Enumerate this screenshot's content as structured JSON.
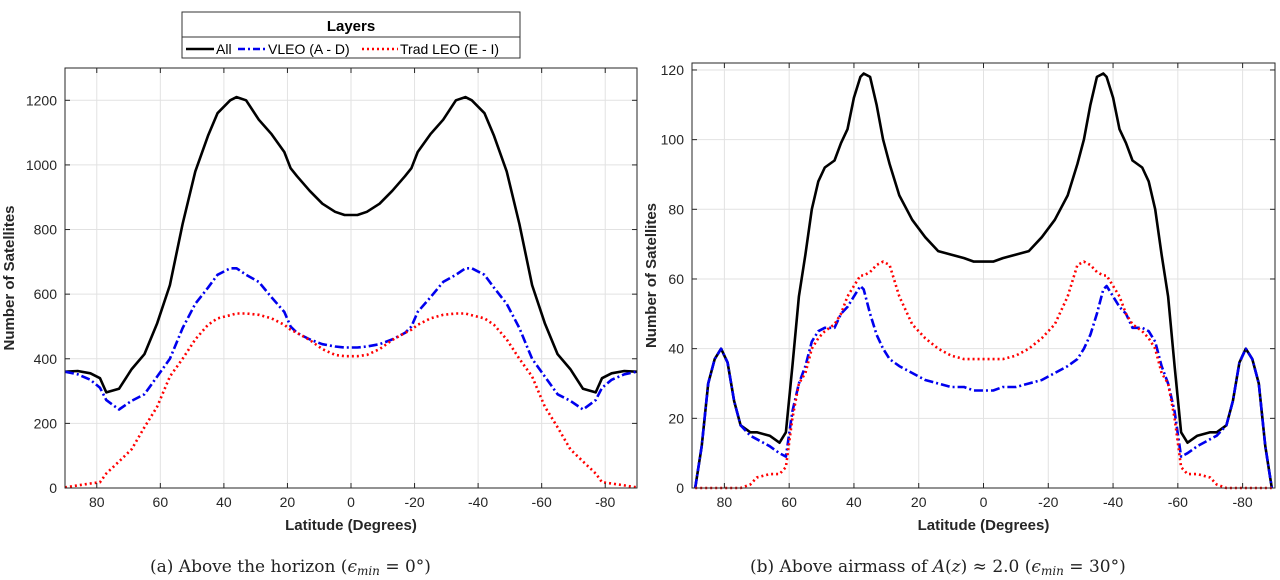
{
  "legend": {
    "title": "Layers",
    "entries": [
      {
        "name": "All",
        "color": "#000000",
        "style": "solid"
      },
      {
        "name": "VLEO (A - D)",
        "color": "#0000ee",
        "style": "dashdot"
      },
      {
        "name": "Trad LEO (E - I)",
        "color": "#ff0000",
        "style": "dotted"
      }
    ]
  },
  "chart_data": [
    {
      "type": "line",
      "caption": "(a) Above the horizon (ϵmin = 0°)",
      "xlabel": "Latitude (Degrees)",
      "ylabel": "Number of Satellites",
      "xlim": [
        90,
        -90
      ],
      "ylim": [
        0,
        1300
      ],
      "xticks": [
        80,
        60,
        40,
        20,
        0,
        -20,
        -40,
        -60,
        -80
      ],
      "yticks": [
        0,
        200,
        400,
        600,
        800,
        1000,
        1200
      ],
      "grid": true,
      "series": [
        {
          "name": "All",
          "color": "#000000",
          "style": "solid",
          "x": [
            90,
            86,
            82,
            79,
            77,
            73,
            69,
            65,
            61,
            57,
            53,
            49,
            45,
            42,
            38,
            36,
            33,
            29,
            25,
            21,
            19,
            17,
            13,
            9,
            5,
            2,
            0,
            -2,
            -5,
            -9,
            -13,
            -17,
            -19,
            -21,
            -25,
            -29,
            -33,
            -36,
            -38,
            -42,
            -45,
            -49,
            -53,
            -57,
            -61,
            -65,
            -69,
            -73,
            -77,
            -79,
            -82,
            -86,
            -90
          ],
          "y": [
            360,
            362,
            355,
            340,
            296,
            307,
            368,
            414,
            510,
            628,
            817,
            980,
            1090,
            1160,
            1200,
            1210,
            1200,
            1140,
            1095,
            1040,
            990,
            965,
            920,
            880,
            855,
            845,
            845,
            845,
            855,
            880,
            920,
            965,
            990,
            1040,
            1095,
            1140,
            1200,
            1210,
            1200,
            1160,
            1090,
            980,
            817,
            628,
            510,
            414,
            368,
            307,
            296,
            340,
            355,
            362,
            360
          ]
        },
        {
          "name": "VLEO (A - D)",
          "color": "#0000ee",
          "style": "dashdot",
          "x": [
            90,
            86,
            82,
            79,
            77,
            73,
            69,
            65,
            61,
            57,
            53,
            49,
            45,
            42,
            38,
            36,
            33,
            29,
            25,
            21,
            19,
            17,
            13,
            9,
            5,
            2,
            0,
            -2,
            -5,
            -9,
            -13,
            -17,
            -19,
            -21,
            -25,
            -29,
            -33,
            -36,
            -38,
            -42,
            -45,
            -49,
            -53,
            -57,
            -61,
            -65,
            -69,
            -73,
            -77,
            -79,
            -82,
            -86,
            -90
          ],
          "y": [
            360,
            352,
            335,
            310,
            272,
            243,
            270,
            290,
            345,
            400,
            495,
            570,
            620,
            660,
            680,
            680,
            660,
            638,
            590,
            545,
            500,
            480,
            460,
            445,
            438,
            435,
            435,
            435,
            438,
            445,
            460,
            480,
            500,
            545,
            590,
            638,
            660,
            680,
            680,
            660,
            620,
            570,
            495,
            400,
            345,
            290,
            270,
            243,
            272,
            310,
            335,
            352,
            360
          ]
        },
        {
          "name": "Trad LEO (E - I)",
          "color": "#ff0000",
          "style": "dotted",
          "x": [
            90,
            86,
            82,
            79,
            77,
            73,
            69,
            65,
            61,
            57,
            53,
            49,
            45,
            42,
            38,
            36,
            33,
            29,
            25,
            21,
            19,
            17,
            13,
            9,
            5,
            2,
            0,
            -2,
            -5,
            -9,
            -13,
            -17,
            -19,
            -21,
            -25,
            -29,
            -33,
            -36,
            -38,
            -42,
            -45,
            -49,
            -53,
            -57,
            -61,
            -65,
            -69,
            -73,
            -77,
            -79,
            -82,
            -86,
            -90
          ],
          "y": [
            2,
            8,
            14,
            18,
            45,
            82,
            120,
            188,
            252,
            345,
            400,
            460,
            505,
            525,
            535,
            540,
            540,
            536,
            525,
            505,
            490,
            480,
            458,
            430,
            412,
            408,
            408,
            408,
            412,
            430,
            458,
            480,
            490,
            505,
            525,
            536,
            540,
            540,
            535,
            525,
            505,
            460,
            400,
            345,
            252,
            188,
            120,
            82,
            45,
            18,
            14,
            8,
            2
          ]
        }
      ]
    },
    {
      "type": "line",
      "caption": "(b) Above airmass of A(z) ≈ 2.0 (ϵmin = 30°)",
      "xlabel": "Latitude (Degrees)",
      "ylabel": "Number of Satellites",
      "xlim": [
        90,
        -90
      ],
      "ylim": [
        0,
        122
      ],
      "xticks": [
        80,
        60,
        40,
        20,
        0,
        -20,
        -40,
        -60,
        -80
      ],
      "yticks": [
        0,
        20,
        40,
        60,
        80,
        100,
        120
      ],
      "grid": true,
      "series": [
        {
          "name": "All",
          "color": "#000000",
          "style": "solid",
          "x": [
            89,
            87,
            85,
            83,
            81,
            79,
            77,
            75,
            72,
            70,
            66,
            63,
            61,
            59,
            57,
            55,
            53,
            51,
            49,
            46,
            44,
            42,
            40,
            38,
            37,
            35,
            33,
            31,
            29,
            26,
            22,
            18,
            14,
            10,
            6,
            3,
            0,
            -3,
            -6,
            -10,
            -14,
            -18,
            -22,
            -26,
            -29,
            -31,
            -33,
            -35,
            -37,
            -38,
            -40,
            -42,
            -44,
            -46,
            -49,
            -51,
            -53,
            -55,
            -57,
            -59,
            -61,
            -63,
            -66,
            -70,
            -72,
            -75,
            -77,
            -79,
            -81,
            -83,
            -85,
            -87,
            -89
          ],
          "y": [
            0,
            12,
            30,
            37,
            40,
            36,
            25,
            18,
            16,
            16,
            15,
            13,
            16,
            35,
            55,
            67,
            80,
            88,
            92,
            94,
            99,
            103,
            112,
            118,
            119,
            118,
            110,
            100,
            93,
            84,
            77,
            72,
            68,
            67,
            66,
            65,
            65,
            65,
            66,
            67,
            68,
            72,
            77,
            84,
            93,
            100,
            110,
            118,
            119,
            118,
            112,
            103,
            99,
            94,
            92,
            88,
            80,
            67,
            55,
            35,
            16,
            13,
            15,
            16,
            16,
            18,
            25,
            36,
            40,
            37,
            30,
            12,
            0
          ]
        },
        {
          "name": "VLEO (A - D)",
          "color": "#0000ee",
          "style": "dashdot",
          "x": [
            89,
            87,
            85,
            83,
            81,
            79,
            77,
            75,
            72,
            70,
            66,
            63,
            61,
            59,
            57,
            55,
            53,
            51,
            49,
            46,
            44,
            42,
            40,
            38,
            37,
            35,
            33,
            31,
            29,
            26,
            22,
            18,
            14,
            10,
            6,
            3,
            0,
            -3,
            -6,
            -10,
            -14,
            -18,
            -22,
            -26,
            -29,
            -31,
            -33,
            -35,
            -37,
            -38,
            -40,
            -42,
            -44,
            -46,
            -49,
            -51,
            -53,
            -55,
            -57,
            -59,
            -61,
            -63,
            -66,
            -70,
            -72,
            -75,
            -77,
            -79,
            -81,
            -83,
            -85,
            -87,
            -89
          ],
          "y": [
            0,
            12,
            30,
            37,
            40,
            36,
            25,
            18,
            15,
            14,
            12,
            10,
            9,
            22,
            30,
            35,
            42,
            45,
            46,
            46,
            50,
            52,
            55,
            58,
            57,
            50,
            44,
            40,
            37,
            35,
            33,
            31,
            30,
            29,
            29,
            28,
            28,
            28,
            29,
            29,
            30,
            31,
            33,
            35,
            37,
            40,
            44,
            50,
            57,
            58,
            55,
            52,
            50,
            46,
            46,
            45,
            42,
            35,
            30,
            22,
            9,
            10,
            12,
            14,
            15,
            18,
            25,
            36,
            40,
            37,
            30,
            12,
            0
          ]
        },
        {
          "name": "Trad LEO (E - I)",
          "color": "#ff0000",
          "style": "dotted",
          "x": [
            89,
            87,
            85,
            83,
            81,
            79,
            77,
            75,
            72,
            70,
            66,
            63,
            61,
            59,
            57,
            55,
            53,
            51,
            49,
            46,
            44,
            42,
            40,
            38,
            37,
            35,
            33,
            31,
            29,
            26,
            22,
            18,
            14,
            10,
            6,
            3,
            0,
            -3,
            -6,
            -10,
            -14,
            -18,
            -22,
            -26,
            -29,
            -31,
            -33,
            -35,
            -37,
            -38,
            -40,
            -42,
            -44,
            -46,
            -49,
            -51,
            -53,
            -55,
            -57,
            -59,
            -61,
            -63,
            -66,
            -70,
            -72,
            -75,
            -77,
            -79,
            -81,
            -83,
            -85,
            -87,
            -89
          ],
          "y": [
            0,
            0,
            0,
            0,
            0,
            0,
            0,
            0,
            1,
            3,
            4,
            4,
            6,
            20,
            30,
            33,
            40,
            43,
            45,
            47,
            50,
            55,
            58,
            61,
            61,
            62,
            64,
            65,
            64,
            55,
            47,
            43,
            40,
            38,
            37,
            37,
            37,
            37,
            37,
            38,
            40,
            43,
            47,
            55,
            64,
            65,
            64,
            62,
            61,
            61,
            58,
            55,
            50,
            47,
            45,
            43,
            40,
            33,
            30,
            20,
            6,
            4,
            4,
            3,
            1,
            0,
            0,
            0,
            0,
            0,
            0,
            0,
            0
          ]
        }
      ]
    }
  ]
}
